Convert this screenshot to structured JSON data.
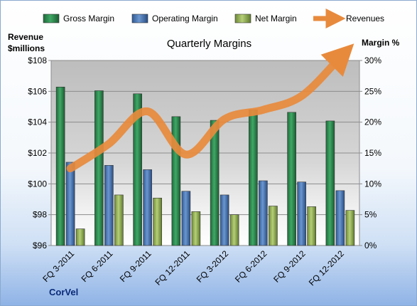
{
  "chart_data": {
    "type": "bar",
    "title": "Quarterly Margins",
    "categories": [
      "FQ 3-2011",
      "FQ 6-2011",
      "FQ 9-2011",
      "FQ 12-2011",
      "FQ 3-2012",
      "FQ 6-2012",
      "FQ 9-2012",
      "FQ 12-2012"
    ],
    "series": [
      {
        "name": "Gross Margin",
        "axis": "right",
        "values": [
          25.7,
          25.1,
          24.6,
          20.9,
          20.3,
          22.0,
          21.6,
          20.2
        ],
        "color": "#2e8b57"
      },
      {
        "name": "Operating Margin",
        "axis": "right",
        "values": [
          13.5,
          13.0,
          12.3,
          8.8,
          8.2,
          10.5,
          10.3,
          8.9
        ],
        "color": "#4f81bd"
      },
      {
        "name": "Net Margin",
        "axis": "right",
        "values": [
          2.7,
          8.2,
          7.7,
          5.5,
          5.0,
          6.4,
          6.3,
          5.7
        ],
        "color": "#9bbb59"
      }
    ],
    "line_series": {
      "name": "Revenues",
      "axis": "left",
      "values": [
        101.0,
        102.6,
        104.7,
        101.9,
        104.2,
        104.8,
        105.7,
        108.2
      ],
      "color": "#e88a3c"
    },
    "ylabel_left": [
      "Revenue",
      "$millions"
    ],
    "ylabel_right": "Margin %",
    "ylim_left": [
      96,
      108
    ],
    "ylim_right": [
      0,
      30
    ],
    "yticks_left": [
      "$96",
      "$98",
      "$100",
      "$102",
      "$104",
      "$106",
      "$108"
    ],
    "yticks_right": [
      "0%",
      "5%",
      "10%",
      "15%",
      "20%",
      "25%",
      "30%"
    ],
    "legend_position": "top",
    "grid": true,
    "plot_background": "#c8c8c8"
  },
  "footer": {
    "brand": "CorVel"
  }
}
